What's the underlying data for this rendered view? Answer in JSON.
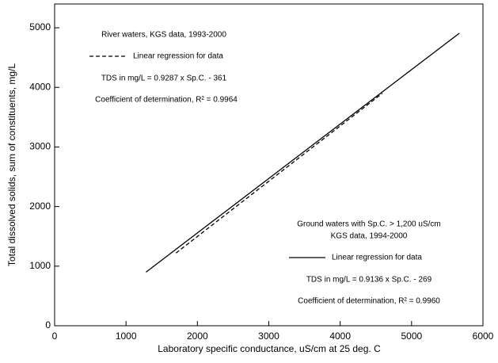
{
  "chart_data": {
    "type": "line",
    "x_label": "Laboratory specific conductance, uS/cm at 25 deg. C",
    "y_label": "Total dissolved solids, sum of constituents, mg/L",
    "xlim": [
      0,
      6000
    ],
    "xticks": [
      0,
      1000,
      2000,
      3000,
      4000,
      5000,
      6000
    ],
    "ylim": [
      0,
      5400
    ],
    "yticks": [
      0,
      1000,
      2000,
      3000,
      4000,
      5000
    ],
    "series": [
      {
        "name": "Linear regression for data",
        "color": "#000000",
        "dash": true,
        "x": [
          1700,
          4590
        ],
        "values": [
          1220,
          3900
        ]
      },
      {
        "name": "Linear regression for data",
        "color": "#000000",
        "dash": false,
        "x": [
          1280,
          5670
        ],
        "values": [
          900,
          4910
        ]
      }
    ],
    "annotations": [
      [
        "River waters, KGS data, 1993-2000",
        "TDS in mg/L = 0.9287 x Sp.C. - 361",
        "Coefficient of determination, R² = 0.9964"
      ],
      [
        "Ground waters with Sp.C. > 1,200 uS/cm",
        "KGS data, 1994-2000",
        "TDS in mg/L = 0.9136 x Sp.C. - 269",
        "Coefficient of determination, R² = 0.9960"
      ]
    ]
  }
}
